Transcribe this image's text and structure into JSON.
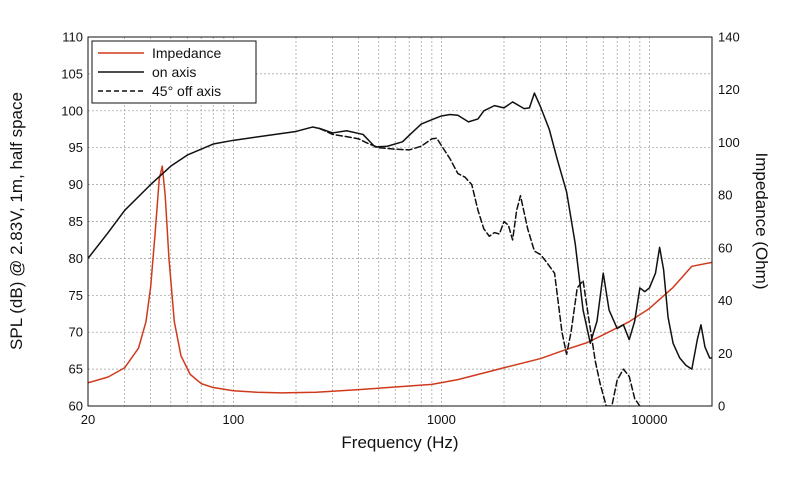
{
  "chart_data": {
    "type": "line",
    "title": "",
    "xlabel": "Frequency (Hz)",
    "ylabel": "SPL (dB) @ 2.83V, 1m, half space",
    "y2label": "Impedance (Ohm)",
    "xscale": "log",
    "xlim": [
      20,
      20000
    ],
    "ylim": [
      60,
      110
    ],
    "y2lim": [
      0,
      140
    ],
    "grid": true,
    "legend_position": "top-left",
    "x_tick_labels": [
      "20",
      "100",
      "1000",
      "10000"
    ],
    "x_tick_values": [
      20,
      100,
      1000,
      10000
    ],
    "y_ticks": [
      60,
      65,
      70,
      75,
      80,
      85,
      90,
      95,
      100,
      105,
      110
    ],
    "y2_ticks": [
      0,
      20,
      40,
      60,
      80,
      100,
      120,
      140
    ],
    "series": [
      {
        "name": "Impedance",
        "axis": "right",
        "color": "#d03a1c",
        "dash": "solid",
        "points": [
          [
            20,
            8.8
          ],
          [
            25,
            11
          ],
          [
            30,
            14.5
          ],
          [
            35,
            22
          ],
          [
            38,
            32
          ],
          [
            40,
            45
          ],
          [
            42,
            65
          ],
          [
            44,
            86
          ],
          [
            45.5,
            91
          ],
          [
            47,
            80
          ],
          [
            49,
            56
          ],
          [
            52,
            32
          ],
          [
            56,
            19
          ],
          [
            62,
            12
          ],
          [
            70,
            8.5
          ],
          [
            80,
            7
          ],
          [
            100,
            5.8
          ],
          [
            130,
            5.2
          ],
          [
            170,
            5
          ],
          [
            250,
            5.2
          ],
          [
            400,
            6.2
          ],
          [
            600,
            7.2
          ],
          [
            900,
            8.2
          ],
          [
            1200,
            10
          ],
          [
            2000,
            14.5
          ],
          [
            3000,
            18
          ],
          [
            4000,
            21.5
          ],
          [
            5000,
            24
          ],
          [
            6000,
            27
          ],
          [
            8000,
            32
          ],
          [
            10000,
            37
          ],
          [
            13000,
            45
          ],
          [
            16000,
            53
          ],
          [
            20000,
            54.5
          ]
        ]
      },
      {
        "name": "on axis",
        "axis": "left",
        "color": "#111111",
        "dash": "solid",
        "points": [
          [
            20,
            80
          ],
          [
            25,
            83.5
          ],
          [
            30,
            86.5
          ],
          [
            40,
            90
          ],
          [
            50,
            92.5
          ],
          [
            60,
            94
          ],
          [
            80,
            95.5
          ],
          [
            100,
            96
          ],
          [
            150,
            96.7
          ],
          [
            200,
            97.2
          ],
          [
            240,
            97.8
          ],
          [
            260,
            97.6
          ],
          [
            300,
            97
          ],
          [
            350,
            97.3
          ],
          [
            420,
            96.8
          ],
          [
            480,
            95.1
          ],
          [
            550,
            95.2
          ],
          [
            650,
            95.8
          ],
          [
            720,
            97
          ],
          [
            800,
            98.2
          ],
          [
            900,
            98.8
          ],
          [
            1000,
            99.3
          ],
          [
            1100,
            99.5
          ],
          [
            1200,
            99.4
          ],
          [
            1350,
            98.5
          ],
          [
            1500,
            98.9
          ],
          [
            1600,
            100
          ],
          [
            1800,
            100.7
          ],
          [
            2000,
            100.4
          ],
          [
            2200,
            101.2
          ],
          [
            2500,
            100.3
          ],
          [
            2650,
            100.4
          ],
          [
            2800,
            102.4
          ],
          [
            3000,
            100.5
          ],
          [
            3300,
            97.5
          ],
          [
            3600,
            93.5
          ],
          [
            4000,
            89
          ],
          [
            4400,
            82
          ],
          [
            4800,
            73
          ],
          [
            5200,
            68.5
          ],
          [
            5600,
            71.5
          ],
          [
            6000,
            78
          ],
          [
            6400,
            73
          ],
          [
            7000,
            70.5
          ],
          [
            7500,
            71
          ],
          [
            8000,
            69
          ],
          [
            8500,
            71.5
          ],
          [
            9000,
            76
          ],
          [
            9500,
            75.5
          ],
          [
            10000,
            76
          ],
          [
            10700,
            78
          ],
          [
            11200,
            81.5
          ],
          [
            11700,
            78.5
          ],
          [
            12300,
            72
          ],
          [
            13000,
            68.5
          ],
          [
            14000,
            66.5
          ],
          [
            15000,
            65.5
          ],
          [
            16000,
            65
          ],
          [
            17000,
            69
          ],
          [
            17700,
            71
          ],
          [
            18500,
            68
          ],
          [
            19500,
            66.5
          ],
          [
            20000,
            66.5
          ]
        ]
      },
      {
        "name": "45° off axis",
        "axis": "left",
        "color": "#111111",
        "dash": "dashed",
        "points": [
          [
            260,
            97.6
          ],
          [
            300,
            96.8
          ],
          [
            350,
            96.5
          ],
          [
            400,
            96.2
          ],
          [
            450,
            95.5
          ],
          [
            500,
            95
          ],
          [
            600,
            94.8
          ],
          [
            700,
            94.7
          ],
          [
            800,
            95.2
          ],
          [
            900,
            96.2
          ],
          [
            950,
            96.3
          ],
          [
            1000,
            95.3
          ],
          [
            1100,
            93.5
          ],
          [
            1200,
            91.5
          ],
          [
            1300,
            91
          ],
          [
            1400,
            90
          ],
          [
            1500,
            86.5
          ],
          [
            1600,
            84
          ],
          [
            1700,
            83
          ],
          [
            1800,
            83.5
          ],
          [
            1900,
            83.3
          ],
          [
            2000,
            85
          ],
          [
            2100,
            84.5
          ],
          [
            2200,
            82.5
          ],
          [
            2300,
            86.5
          ],
          [
            2400,
            88.5
          ],
          [
            2600,
            84
          ],
          [
            2800,
            81
          ],
          [
            3000,
            80.5
          ],
          [
            3200,
            79.5
          ],
          [
            3500,
            78
          ],
          [
            3800,
            70
          ],
          [
            4000,
            67
          ],
          [
            4200,
            70
          ],
          [
            4500,
            76
          ],
          [
            4800,
            77
          ],
          [
            5100,
            72
          ],
          [
            5500,
            66
          ],
          [
            5800,
            63
          ],
          [
            6200,
            60
          ],
          [
            6600,
            60
          ],
          [
            7000,
            63.5
          ],
          [
            7500,
            65
          ],
          [
            8000,
            64
          ],
          [
            8500,
            61
          ],
          [
            9000,
            60
          ]
        ]
      }
    ]
  }
}
